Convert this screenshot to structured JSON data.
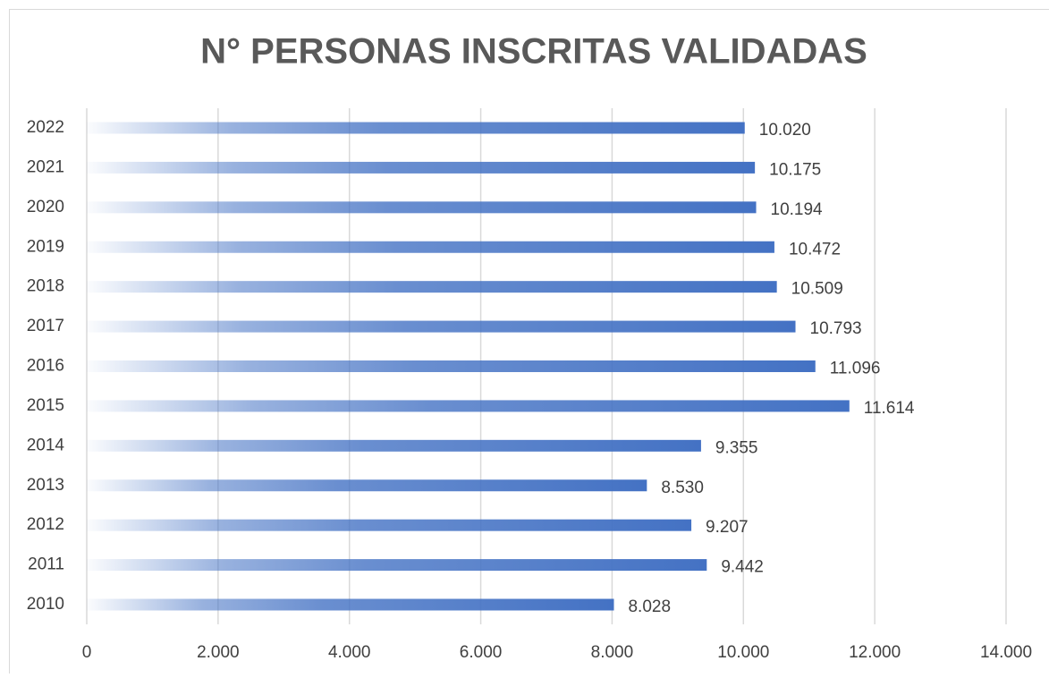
{
  "chart_data": {
    "type": "hbar",
    "title": "N° PERSONAS INSCRITAS VALIDADAS",
    "categories": [
      "2022",
      "2021",
      "2020",
      "2019",
      "2018",
      "2017",
      "2016",
      "2015",
      "2014",
      "2013",
      "2012",
      "2011",
      "2010"
    ],
    "values": [
      10020,
      10175,
      10194,
      10472,
      10509,
      10793,
      11096,
      11614,
      9355,
      8530,
      9207,
      9442,
      8028
    ],
    "value_labels": [
      "10.020",
      "10.175",
      "10.194",
      "10.472",
      "10.509",
      "10.793",
      "11.096",
      "11.614",
      "9.355",
      "8.530",
      "9.207",
      "9.442",
      "8.028"
    ],
    "color": "#4472c4",
    "xlim": [
      0,
      14000
    ],
    "xticks": [
      0,
      {
        "value": 2000,
        "label": "2.000"
      },
      {
        "value": 4000,
        "label": "4.000"
      },
      {
        "value": 6000,
        "label": "6.000"
      },
      {
        "value": 8000,
        "label": "8.000"
      },
      {
        "value": 10000,
        "label": "10.000"
      },
      {
        "value": 12000,
        "label": "12.000"
      },
      {
        "value": 14000,
        "label": "14.000"
      }
    ],
    "grid": true
  }
}
